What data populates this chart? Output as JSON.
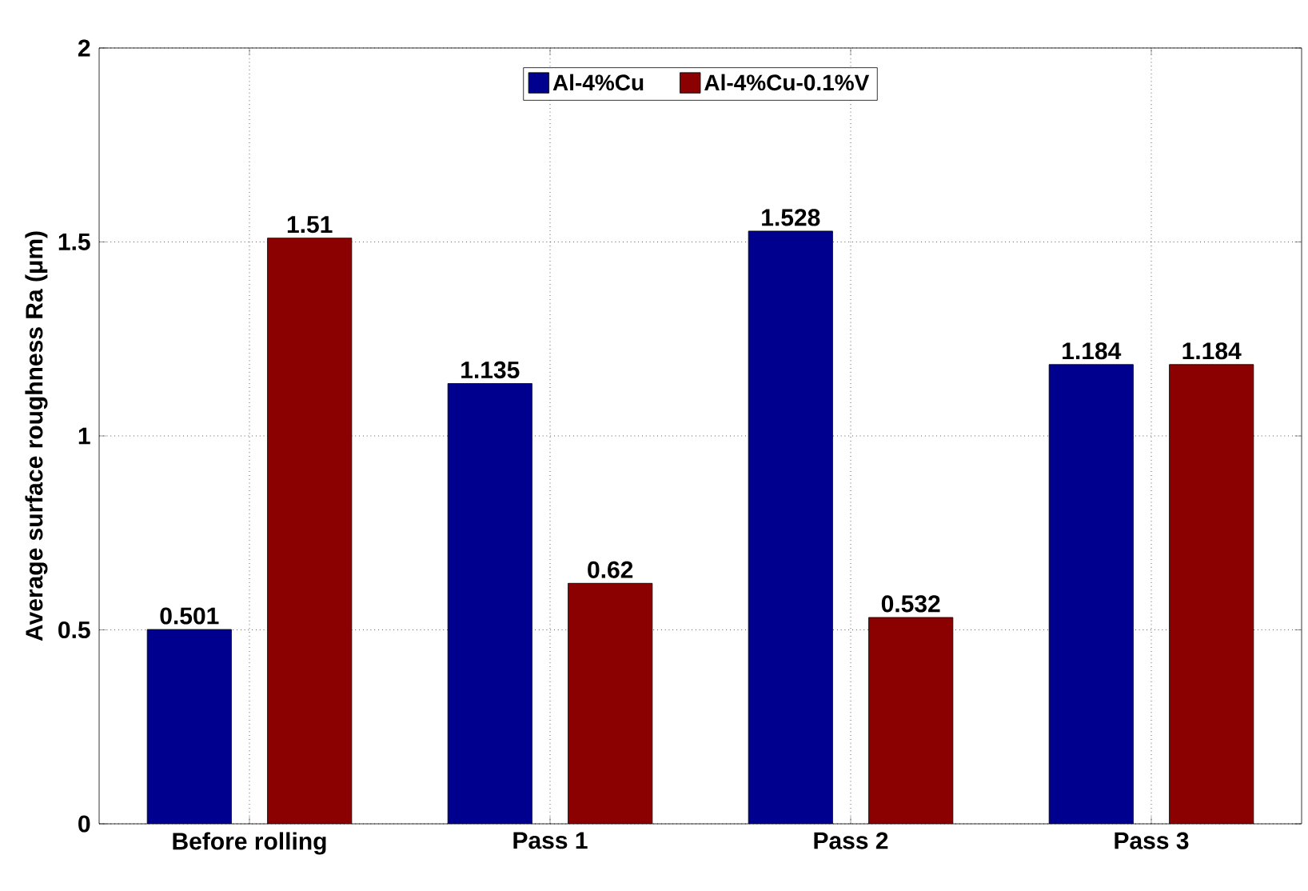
{
  "chart_data": {
    "type": "bar",
    "ylabel": "Average surface roughness Ra (μm)",
    "categories": [
      "Before rolling",
      "Pass 1",
      "Pass 2",
      "Pass 3"
    ],
    "series": [
      {
        "name": "Al-4%Cu",
        "color": "#00008f",
        "values": [
          0.501,
          1.135,
          1.528,
          1.184
        ]
      },
      {
        "name": "Al-4%Cu-0.1%V",
        "color": "#8b0000",
        "values": [
          1.51,
          0.62,
          0.532,
          1.184
        ]
      }
    ],
    "ylim": [
      0,
      2
    ],
    "yticks": [
      0,
      0.5,
      1,
      1.5,
      2
    ],
    "grid": true,
    "legend": "top",
    "data_labels": true
  }
}
